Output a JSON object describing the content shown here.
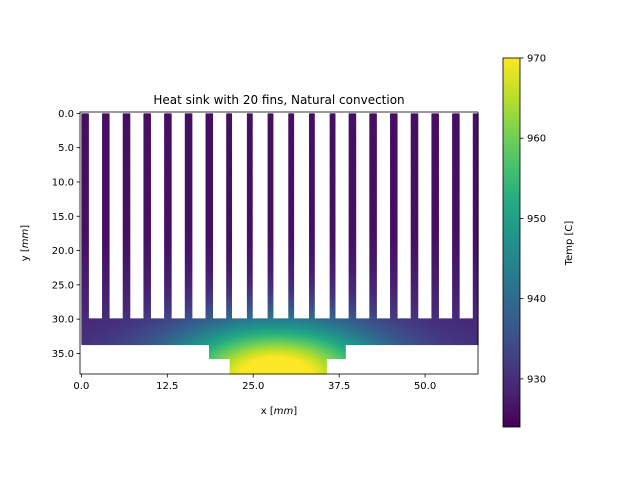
{
  "chart_data": {
    "type": "heatmap",
    "title": "Heat sink with 20 fins, Natural convection",
    "xlabel_text": "x [",
    "xlabel_unit": "mm",
    "xlabel_close": "]",
    "ylabel_text": "y [",
    "ylabel_unit": "mm",
    "ylabel_close": "]",
    "colorbar_label": "Temp [C]",
    "x_ticks": [
      "0.0",
      "12.5",
      "25.0",
      "37.5",
      "50.0"
    ],
    "x_tick_values": [
      0.0,
      12.5,
      25.0,
      37.5,
      50.0
    ],
    "y_ticks": [
      "0.0",
      "5.0",
      "10.0",
      "15.0",
      "20.0",
      "25.0",
      "30.0",
      "35.0"
    ],
    "y_tick_values": [
      0.0,
      5.0,
      10.0,
      15.0,
      20.0,
      25.0,
      30.0,
      35.0
    ],
    "colorbar_ticks": [
      "930",
      "940",
      "950",
      "960",
      "970"
    ],
    "colorbar_tick_values": [
      930,
      940,
      950,
      960,
      970
    ],
    "xlim": [
      -0.2,
      57.7
    ],
    "ylim": [
      38.0,
      -0.2
    ],
    "clim": [
      924,
      970
    ],
    "colormap": "viridis",
    "grid": false,
    "geometry": {
      "fin_count": 20,
      "fin_pitch": 3.0,
      "fin_width": 0.95,
      "fin_top": 0.0,
      "base_y_top": 30.0,
      "base_y_bottom": 33.8,
      "base_x": [
        0.0,
        57.7
      ],
      "step1_x": [
        18.5,
        38.5
      ],
      "step1_y": [
        33.8,
        35.8
      ],
      "step2_x": [
        21.5,
        35.5
      ],
      "step2_y": [
        35.8,
        38.0
      ]
    },
    "temperature_model": {
      "source_x": 28.3,
      "source_y": 38.0,
      "max_temp": 970,
      "min_temp": 926
    }
  }
}
